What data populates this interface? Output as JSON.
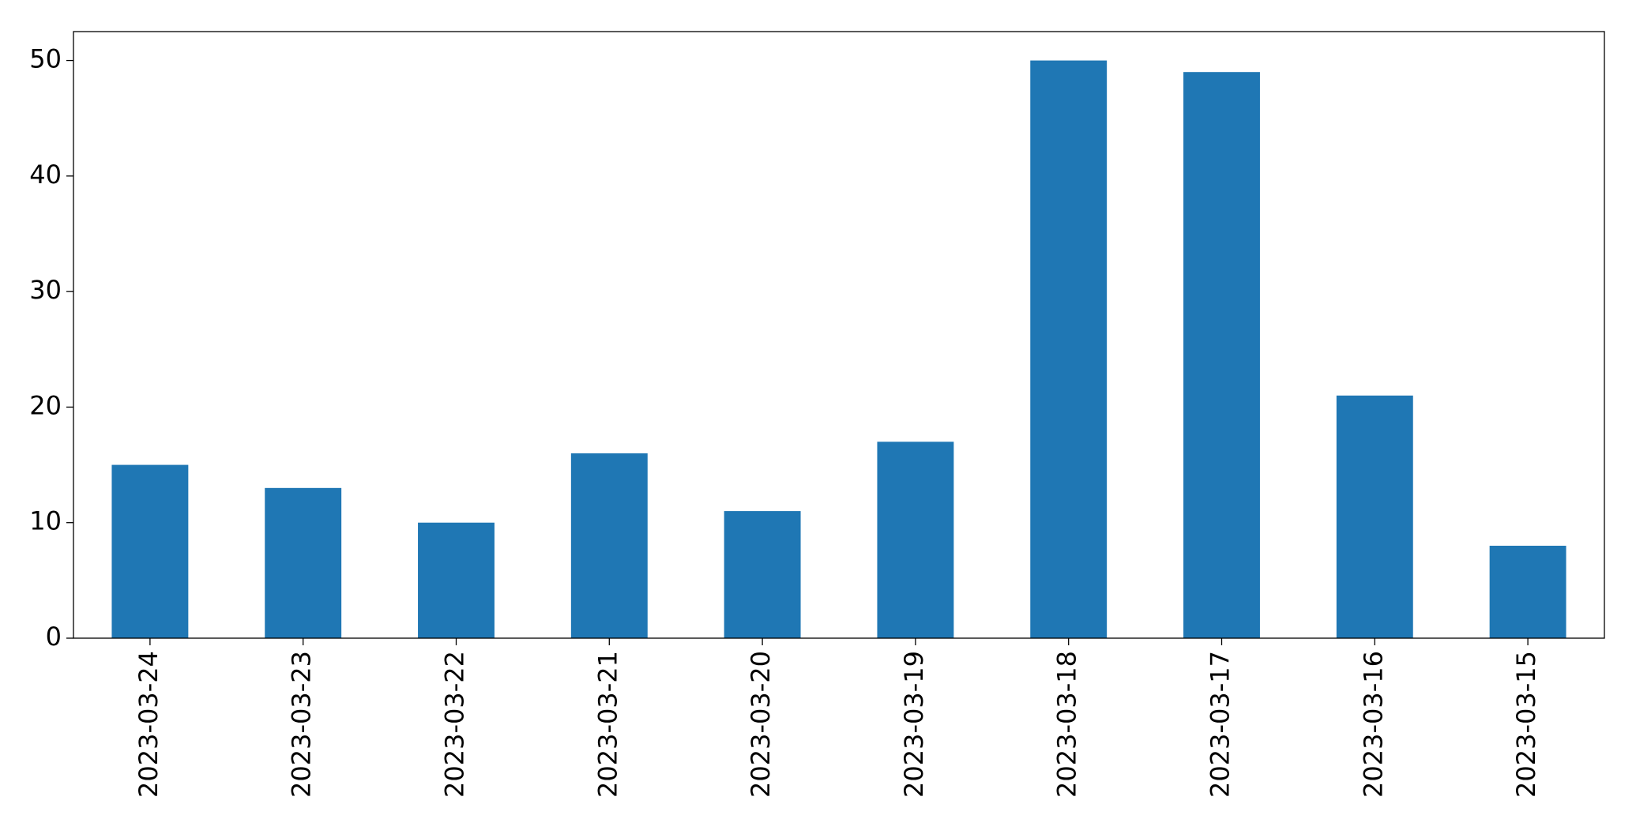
{
  "chart_data": {
    "type": "bar",
    "categories": [
      "2023-03-24",
      "2023-03-23",
      "2023-03-22",
      "2023-03-21",
      "2023-03-20",
      "2023-03-19",
      "2023-03-18",
      "2023-03-17",
      "2023-03-16",
      "2023-03-15"
    ],
    "values": [
      15,
      13,
      10,
      16,
      11,
      17,
      50,
      49,
      21,
      8
    ],
    "color": "#1f77b4",
    "ylim": [
      0,
      52.5
    ],
    "yticks": [
      0,
      10,
      20,
      30,
      40,
      50
    ],
    "grid": false
  }
}
